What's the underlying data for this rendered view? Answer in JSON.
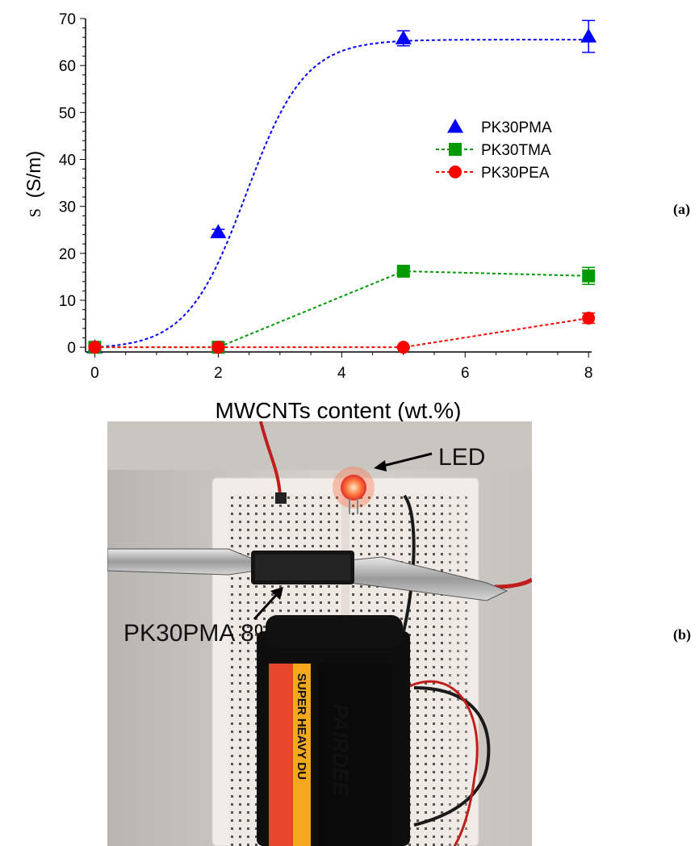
{
  "panel_a_label": "(a)",
  "panel_b_label": "(b)",
  "chart_data": {
    "type": "line",
    "title": "",
    "xlabel": "MWCNTs content (wt.%)",
    "ylabel_symbol": "S",
    "ylabel_unit": "(S/m)",
    "xlim": [
      -0.15,
      8.05
    ],
    "ylim": [
      -1,
      70
    ],
    "xticks": [
      0,
      2,
      4,
      6,
      8
    ],
    "yticks": [
      0,
      10,
      20,
      30,
      40,
      50,
      60,
      70
    ],
    "grid": false,
    "legend_position": "upper-right",
    "series": [
      {
        "name": "PK30PMA",
        "color": "#0000ff",
        "marker": "triangle",
        "x": [
          0,
          2,
          5,
          8
        ],
        "y": [
          0,
          24.5,
          65.8,
          66.2
        ],
        "yerr": [
          0.5,
          0.6,
          1.6,
          3.4
        ],
        "fit": "sigmoid"
      },
      {
        "name": "PK30TMA",
        "color": "#009900",
        "marker": "square",
        "x": [
          0,
          2,
          5,
          8
        ],
        "y": [
          0,
          0,
          16.2,
          15.2
        ],
        "yerr": [
          0.3,
          0.3,
          0.9,
          1.8
        ],
        "fit": "segments"
      },
      {
        "name": "PK30PEA",
        "color": "#ff0000",
        "marker": "circle",
        "x": [
          0,
          2,
          5,
          8
        ],
        "y": [
          0,
          0,
          0,
          6.2
        ],
        "yerr": [
          0.2,
          0.2,
          0.2,
          1.1
        ],
        "fit": "segments"
      }
    ]
  },
  "photo": {
    "led_label": "LED",
    "sample_label": "PK30PMA 8%",
    "battery_text_1": "SUPER HEAVY DU",
    "battery_text_2": "PAIRDEE"
  }
}
